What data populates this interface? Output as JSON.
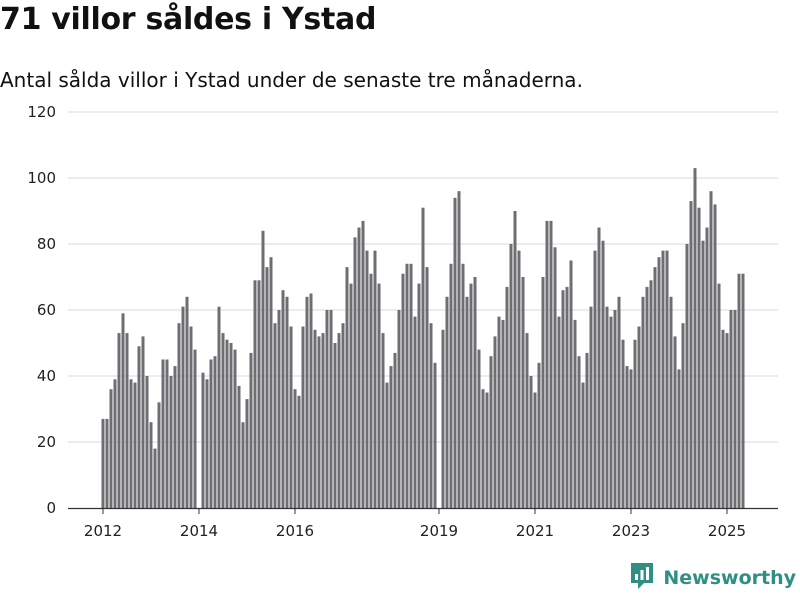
{
  "header": {
    "title": "71 villor såldes i Ystad",
    "subtitle": "Antal sålda villor i Ystad under de senaste tre månaderna."
  },
  "branding": {
    "name": "Newsworthy",
    "logo_icon": "newsworthy-logo-icon",
    "color": "#2f8f82"
  },
  "colors": {
    "bar": "#6e6d72",
    "highlight_bar": "#21998a",
    "grid": "#d9d9d9",
    "axis": "#333333"
  },
  "chart_data": {
    "type": "bar",
    "title": "",
    "xlabel": "",
    "ylabel": "",
    "ylim": [
      0,
      120
    ],
    "yticks": [
      0,
      20,
      40,
      60,
      80,
      100,
      120
    ],
    "grid": true,
    "start": "2012-01",
    "xtick_labels": [
      "2012",
      "2014",
      "2016",
      "2019",
      "2021",
      "2023",
      "2025"
    ],
    "xtick_positions": [
      "2012-01",
      "2014-01",
      "2016-01",
      "2019-01",
      "2021-01",
      "2023-01",
      "2025-01"
    ],
    "highlight": {
      "date": "2025-06",
      "value": 71,
      "label": "71"
    },
    "values": [
      27,
      27,
      36,
      39,
      53,
      59,
      53,
      39,
      38,
      49,
      52,
      40,
      26,
      18,
      32,
      45,
      45,
      40,
      43,
      56,
      61,
      64,
      55,
      48,
      null,
      41,
      39,
      45,
      46,
      61,
      53,
      51,
      50,
      48,
      37,
      26,
      33,
      47,
      69,
      69,
      84,
      73,
      76,
      56,
      60,
      66,
      64,
      55,
      36,
      34,
      55,
      64,
      65,
      54,
      52,
      53,
      60,
      60,
      50,
      53,
      56,
      73,
      68,
      82,
      85,
      87,
      78,
      71,
      78,
      68,
      53,
      38,
      43,
      47,
      60,
      71,
      74,
      74,
      58,
      68,
      91,
      73,
      56,
      44,
      null,
      54,
      64,
      74,
      94,
      96,
      74,
      64,
      68,
      70,
      48,
      36,
      35,
      46,
      52,
      58,
      57,
      67,
      80,
      90,
      78,
      70,
      53,
      40,
      35,
      44,
      70,
      87,
      87,
      79,
      58,
      66,
      67,
      75,
      57,
      46,
      38,
      47,
      61,
      78,
      85,
      81,
      61,
      58,
      60,
      64,
      51,
      43,
      42,
      51,
      55,
      64,
      67,
      69,
      73,
      76,
      78,
      78,
      64,
      52,
      42,
      56,
      80,
      93,
      103,
      91,
      81,
      85,
      96,
      92,
      68,
      54,
      53,
      60,
      60,
      71,
      71
    ]
  }
}
